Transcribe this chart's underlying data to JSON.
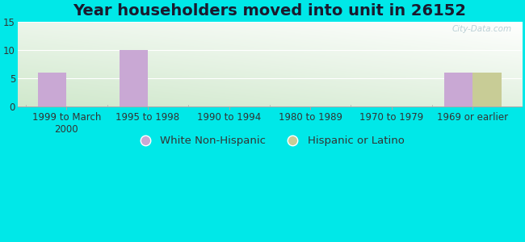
{
  "title": "Year householders moved into unit in 26152",
  "categories": [
    "1999 to March\n2000",
    "1995 to 1998",
    "1990 to 1994",
    "1980 to 1989",
    "1970 to 1979",
    "1969 or earlier"
  ],
  "white_non_hispanic": [
    6,
    10,
    0,
    0,
    0,
    6
  ],
  "hispanic_or_latino": [
    0,
    0,
    0,
    0,
    0,
    6
  ],
  "white_color": "#c9a8d4",
  "hispanic_color": "#c8cc96",
  "ylim": [
    0,
    15
  ],
  "yticks": [
    0,
    5,
    10,
    15
  ],
  "background_outer": "#00e8e8",
  "bar_width": 0.35,
  "title_fontsize": 14,
  "tick_fontsize": 8.5,
  "legend_fontsize": 9.5,
  "watermark": "City-Data.com"
}
